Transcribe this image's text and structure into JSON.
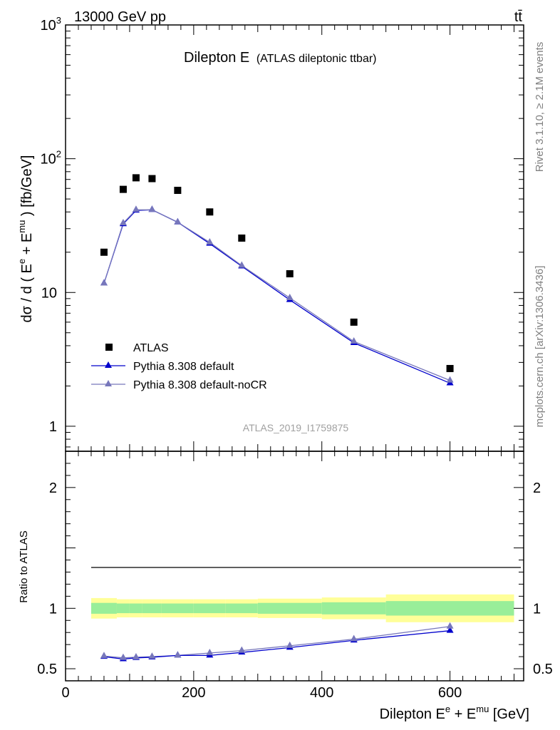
{
  "header": {
    "left": "13000 GeV pp",
    "right": "tt̄"
  },
  "side_labels": {
    "rivet": "Rivet 3.1.10, ≥ 2.1M events",
    "mcplots": "mcplots.cern.ch [arXiv:1306.3436]"
  },
  "chart_data": [
    {
      "type": "scatter",
      "title_main": "Dilepton E",
      "title_sub": "(ATLAS dileptonic ttbar)",
      "watermark": "ATLAS_2019_I1759875",
      "ylabel": "dσ / d ( E^e + E^mu ) [fb/GeV]",
      "ylabel_parts": {
        "a": "dσ / d ( E",
        "e": "e",
        "b": " + E",
        "mu": "mu",
        "c": " ) [fb/GeV]"
      },
      "yscale": "log",
      "ylim": [
        0.65,
        1000
      ],
      "xlim": [
        0,
        715
      ],
      "yticks_major": [
        {
          "v": 1,
          "label": "1"
        },
        {
          "v": 10,
          "label": "10"
        },
        {
          "v": 100,
          "label": "10",
          "sup": "2"
        },
        {
          "v": 1000,
          "label": "10",
          "sup": "3"
        }
      ],
      "legend_position": "middle-left",
      "series": [
        {
          "name": "ATLAS",
          "marker": "square",
          "color": "#000000",
          "x": [
            60,
            90,
            110,
            135,
            175,
            225,
            275,
            350,
            450,
            600
          ],
          "y": [
            20,
            59,
            72,
            71,
            58,
            40,
            25.5,
            13.8,
            6,
            2.7
          ]
        },
        {
          "name": "Pythia 8.308 default",
          "marker": "triangle",
          "color": "#0000cc",
          "x": [
            60,
            90,
            110,
            135,
            175,
            225,
            275,
            350,
            450,
            600
          ],
          "y": [
            11.7,
            32.5,
            41,
            41.5,
            33.5,
            23.2,
            15.7,
            8.8,
            4.2,
            2.1
          ]
        },
        {
          "name": "Pythia 8.308 default-noCR",
          "marker": "triangle",
          "color": "#7777bb",
          "x": [
            60,
            90,
            110,
            135,
            175,
            225,
            275,
            350,
            450,
            600
          ],
          "y": [
            11.7,
            33,
            41.5,
            41.5,
            33.5,
            23.7,
            15.9,
            9.1,
            4.3,
            2.2
          ]
        }
      ]
    },
    {
      "type": "line",
      "ylabel": "Ratio to ATLAS",
      "xlabel": "Dilepton E^e + E^mu [GeV]",
      "xlabel_parts": {
        "a": "Dilepton E",
        "e": "e",
        "b": " + E",
        "mu": "mu",
        "c": " [GeV]"
      },
      "ylim": [
        0.4,
        2.3
      ],
      "xlim": [
        0,
        715
      ],
      "xticks": [
        0,
        200,
        400,
        600
      ],
      "yticks": [
        0.5,
        1,
        2
      ],
      "band_colors": {
        "inner": "#99ee99",
        "outer": "#ffff99"
      },
      "bands": [
        {
          "x0": 40,
          "x1": 80,
          "inner": 0.045,
          "outer": 0.085
        },
        {
          "x0": 80,
          "x1": 100,
          "inner": 0.04,
          "outer": 0.075
        },
        {
          "x0": 100,
          "x1": 120,
          "inner": 0.04,
          "outer": 0.075
        },
        {
          "x0": 120,
          "x1": 150,
          "inner": 0.04,
          "outer": 0.075
        },
        {
          "x0": 150,
          "x1": 200,
          "inner": 0.04,
          "outer": 0.075
        },
        {
          "x0": 200,
          "x1": 250,
          "inner": 0.04,
          "outer": 0.075
        },
        {
          "x0": 250,
          "x1": 300,
          "inner": 0.04,
          "outer": 0.075
        },
        {
          "x0": 300,
          "x1": 400,
          "inner": 0.045,
          "outer": 0.08
        },
        {
          "x0": 400,
          "x1": 500,
          "inner": 0.05,
          "outer": 0.09
        },
        {
          "x0": 500,
          "x1": 700,
          "inner": 0.06,
          "outer": 0.115
        }
      ],
      "series": [
        {
          "name": "Pythia 8.308 default",
          "color": "#0000cc",
          "x": [
            60,
            90,
            110,
            135,
            175,
            225,
            275,
            350,
            450,
            600
          ],
          "y": [
            0.6,
            0.58,
            0.59,
            0.595,
            0.61,
            0.61,
            0.635,
            0.675,
            0.735,
            0.815
          ]
        },
        {
          "name": "Pythia 8.308 default-noCR",
          "color": "#7777bb",
          "x": [
            60,
            90,
            110,
            135,
            175,
            225,
            275,
            350,
            450,
            600
          ],
          "y": [
            0.605,
            0.59,
            0.595,
            0.6,
            0.61,
            0.63,
            0.65,
            0.69,
            0.745,
            0.85
          ]
        }
      ]
    }
  ]
}
